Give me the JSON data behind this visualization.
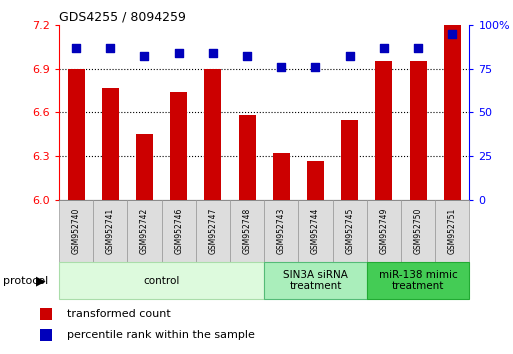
{
  "title": "GDS4255 / 8094259",
  "samples": [
    "GSM952740",
    "GSM952741",
    "GSM952742",
    "GSM952746",
    "GSM952747",
    "GSM952748",
    "GSM952743",
    "GSM952744",
    "GSM952745",
    "GSM952749",
    "GSM952750",
    "GSM952751"
  ],
  "transformed_count": [
    6.9,
    6.77,
    6.45,
    6.74,
    6.9,
    6.58,
    6.32,
    6.27,
    6.55,
    6.95,
    6.95,
    7.2
  ],
  "percentile_rank": [
    87,
    87,
    82,
    84,
    84,
    82,
    76,
    76,
    82,
    87,
    87,
    95
  ],
  "ylim_left": [
    6.0,
    7.2
  ],
  "ylim_right": [
    0,
    100
  ],
  "yticks_left": [
    6.0,
    6.3,
    6.6,
    6.9,
    7.2
  ],
  "yticks_right": [
    0,
    25,
    50,
    75,
    100
  ],
  "bar_color": "#CC0000",
  "dot_color": "#0000BB",
  "groups": [
    {
      "label": "control",
      "start": 0,
      "end": 5,
      "color": "#ddfadd",
      "edge_color": "#aaddaa"
    },
    {
      "label": "SIN3A siRNA\ntreatment",
      "start": 6,
      "end": 8,
      "color": "#aaeebb",
      "edge_color": "#55bb77"
    },
    {
      "label": "miR-138 mimic\ntreatment",
      "start": 9,
      "end": 11,
      "color": "#44cc55",
      "edge_color": "#22aa33"
    }
  ],
  "legend_bar_label": "transformed count",
  "legend_dot_label": "percentile rank within the sample",
  "xlabel_protocol": "protocol",
  "bar_width": 0.5,
  "dot_size": 28,
  "sample_box_color": "#dddddd",
  "fig_width": 5.13,
  "fig_height": 3.54,
  "dpi": 100
}
